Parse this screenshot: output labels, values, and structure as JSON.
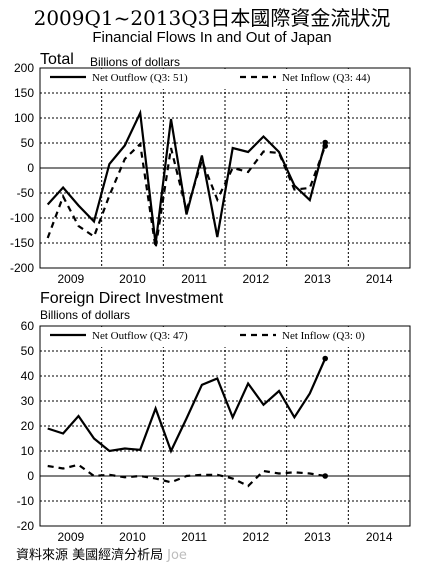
{
  "title": "2009Q1~2013Q3日本國際資金流狀況",
  "subtitle": "Financial Flows In and Out of Japan",
  "footer": {
    "source": "資料來源 美國經濟分析局",
    "author": "Joe"
  },
  "chart_data": [
    {
      "type": "line",
      "title": "Total",
      "unit": "Billions of dollars",
      "ylim": [
        -200,
        200
      ],
      "yticks": [
        -200,
        -150,
        -100,
        -50,
        0,
        50,
        100,
        150,
        200
      ],
      "xlabels": [
        "2009",
        "2010",
        "2011",
        "2012",
        "2013",
        "2014"
      ],
      "legend": "top",
      "grid": true,
      "series": [
        {
          "name": "Net Outflow (Q3: 51)",
          "style": "solid",
          "values": [
            -73,
            -39,
            -75,
            -107,
            8,
            45,
            110,
            -152,
            98,
            -93,
            25,
            -138,
            40,
            32,
            63,
            32,
            -35,
            -64,
            51
          ]
        },
        {
          "name": "Net Inflow (Q3: 44)",
          "style": "dashed",
          "values": [
            -140,
            -57,
            -116,
            -137,
            -55,
            18,
            48,
            -160,
            40,
            -85,
            15,
            -63,
            0,
            -8,
            33,
            30,
            -43,
            -40,
            44
          ]
        }
      ]
    },
    {
      "type": "line",
      "title": "Foreign Direct Investment",
      "unit": "Billions of dollars",
      "ylim": [
        -20,
        60
      ],
      "yticks": [
        -20,
        -10,
        0,
        10,
        20,
        30,
        40,
        50,
        60
      ],
      "xlabels": [
        "2009",
        "2010",
        "2011",
        "2012",
        "2013",
        "2014"
      ],
      "legend": "top",
      "grid": true,
      "series": [
        {
          "name": "Net Outflow (Q3: 47)",
          "style": "solid",
          "values": [
            19,
            17,
            24,
            15,
            10,
            11,
            10.5,
            27,
            10,
            23,
            36.5,
            39,
            23.5,
            37,
            28.5,
            34,
            23.5,
            33,
            47
          ]
        },
        {
          "name": "Net Inflow (Q3: 0)",
          "style": "dashed",
          "values": [
            4,
            3,
            4.5,
            0,
            0.5,
            -0.5,
            0,
            -1,
            -2.5,
            0,
            0.5,
            0.5,
            -1,
            -4,
            2,
            1,
            1.5,
            1,
            0
          ]
        }
      ]
    }
  ]
}
